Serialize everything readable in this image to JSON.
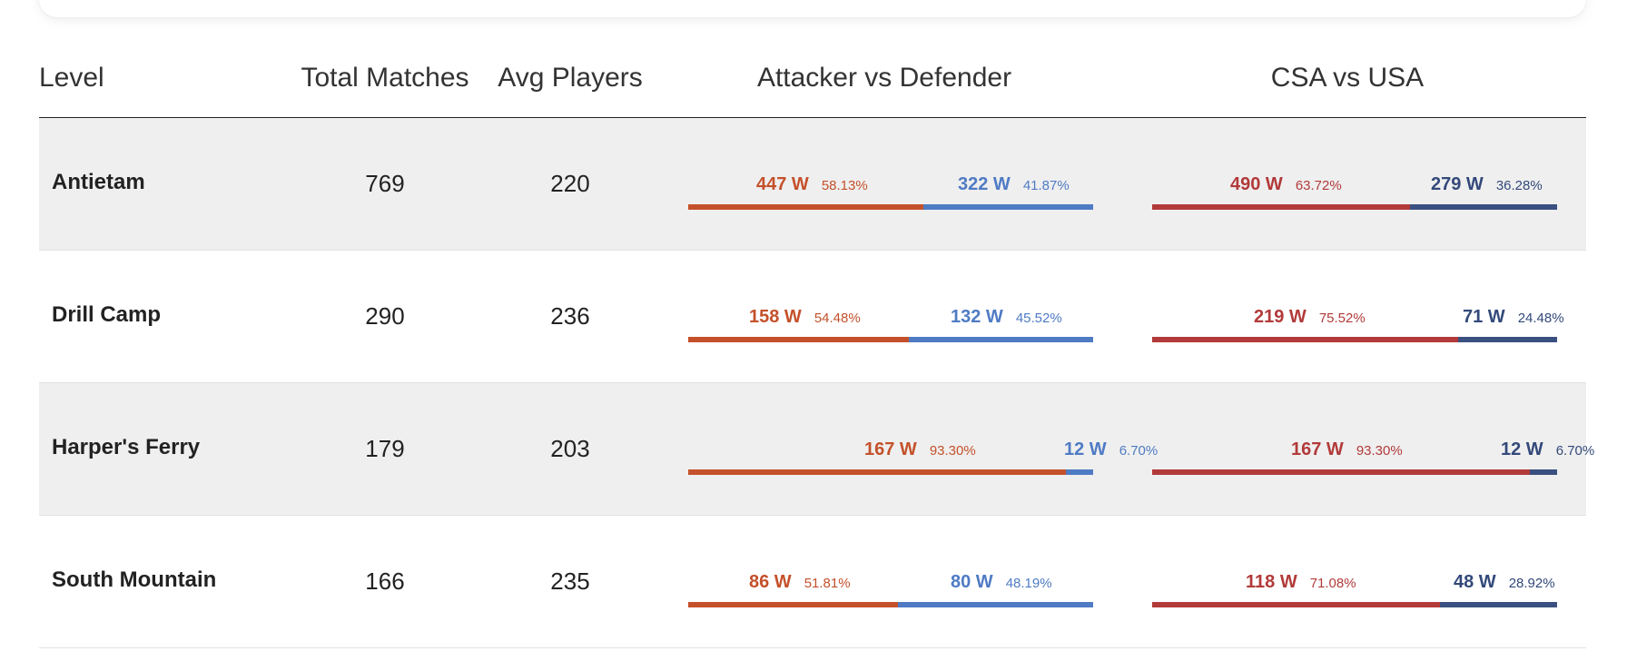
{
  "table": {
    "headers": {
      "level": "Level",
      "total_matches": "Total Matches",
      "avg_players": "Avg Players",
      "attacker_vs_defender": "Attacker vs Defender",
      "csa_vs_usa": "CSA vs USA"
    },
    "rows": [
      {
        "level": "Antietam",
        "total_matches": "769",
        "avg_players": "220",
        "atk": {
          "left_w": "447 W",
          "left_pct": "58.13%",
          "right_w": "322 W",
          "right_pct": "41.87%",
          "left_frac": 0.5813
        },
        "csa": {
          "left_w": "490 W",
          "left_pct": "63.72%",
          "right_w": "279 W",
          "right_pct": "36.28%",
          "left_frac": 0.6372
        }
      },
      {
        "level": "Drill Camp",
        "total_matches": "290",
        "avg_players": "236",
        "atk": {
          "left_w": "158 W",
          "left_pct": "54.48%",
          "right_w": "132 W",
          "right_pct": "45.52%",
          "left_frac": 0.5448
        },
        "csa": {
          "left_w": "219 W",
          "left_pct": "75.52%",
          "right_w": "71 W",
          "right_pct": "24.48%",
          "left_frac": 0.7552
        }
      },
      {
        "level": "Harper's Ferry",
        "total_matches": "179",
        "avg_players": "203",
        "atk": {
          "left_w": "167 W",
          "left_pct": "93.30%",
          "right_w": "12 W",
          "right_pct": "6.70%",
          "left_frac": 0.933
        },
        "csa": {
          "left_w": "167 W",
          "left_pct": "93.30%",
          "right_w": "12 W",
          "right_pct": "6.70%",
          "left_frac": 0.933
        }
      },
      {
        "level": "South Mountain",
        "total_matches": "166",
        "avg_players": "235",
        "atk": {
          "left_w": "86 W",
          "left_pct": "51.81%",
          "right_w": "80 W",
          "right_pct": "48.19%",
          "left_frac": 0.5181
        },
        "csa": {
          "left_w": "118 W",
          "left_pct": "71.08%",
          "right_w": "48 W",
          "right_pct": "28.92%",
          "left_frac": 0.7108
        }
      }
    ]
  },
  "colors": {
    "attacker": "#c4512b",
    "defender": "#4f7bc4",
    "csa": "#b23a3a",
    "usa": "#3a5080",
    "row_shade": "#efefef"
  }
}
